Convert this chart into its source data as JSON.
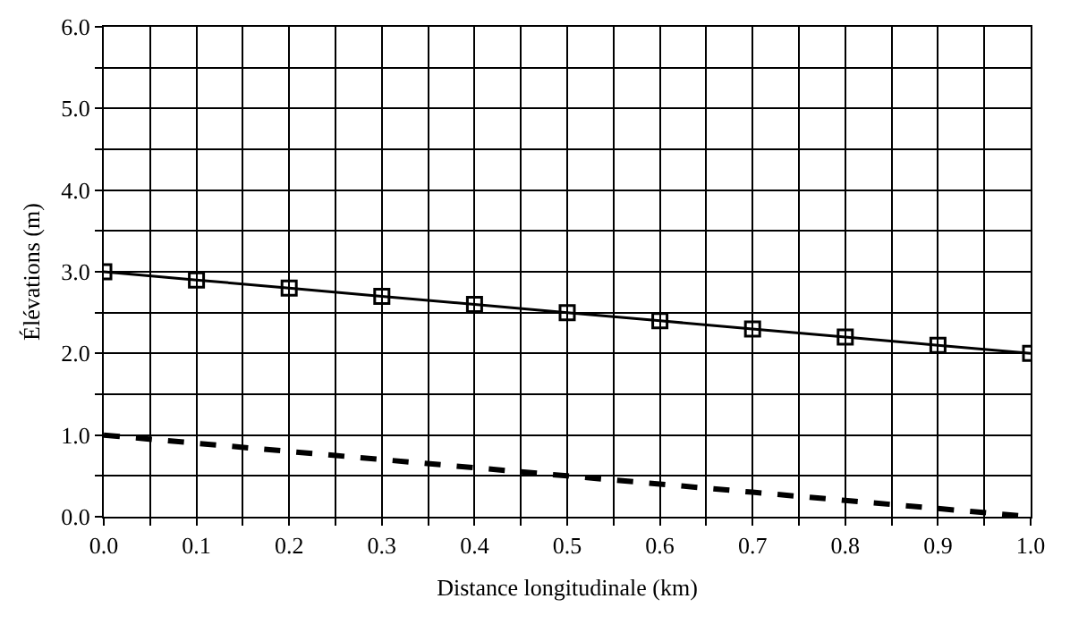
{
  "chart_data": {
    "type": "line",
    "xlabel": "Distance longitudinale (km)",
    "ylabel": "Élévations (m)",
    "x": [
      0,
      0.1,
      0.2,
      0.3,
      0.4,
      0.5,
      0.6,
      0.7,
      0.8,
      0.9,
      1.0
    ],
    "series": [
      {
        "color": "#000000",
        "marker": "square",
        "line_style": "solid",
        "values": [
          3.0,
          2.9,
          2.8,
          2.7,
          2.6,
          2.5,
          2.4,
          2.3,
          2.2,
          2.1,
          2.0
        ]
      },
      {
        "color": "#000000",
        "marker": "none",
        "line_style": "dashed",
        "values": [
          1.0,
          0.9,
          0.8,
          0.7,
          0.6,
          0.5,
          0.4,
          0.3,
          0.2,
          0.1,
          0.0
        ]
      }
    ],
    "xlim": [
      0,
      1
    ],
    "ylim": [
      0,
      6
    ],
    "xticks": [
      {
        "value": 0,
        "label": "0.0"
      },
      {
        "value": 0.05,
        "label": null
      },
      {
        "value": 0.1,
        "label": "0.1"
      },
      {
        "value": 0.15,
        "label": null
      },
      {
        "value": 0.2,
        "label": "0.2"
      },
      {
        "value": 0.25,
        "label": null
      },
      {
        "value": 0.3,
        "label": "0.3"
      },
      {
        "value": 0.35,
        "label": null
      },
      {
        "value": 0.4,
        "label": "0.4"
      },
      {
        "value": 0.45,
        "label": null
      },
      {
        "value": 0.5,
        "label": "0.5"
      },
      {
        "value": 0.55,
        "label": null
      },
      {
        "value": 0.6,
        "label": "0.6"
      },
      {
        "value": 0.65,
        "label": null
      },
      {
        "value": 0.7,
        "label": "0.7"
      },
      {
        "value": 0.75,
        "label": null
      },
      {
        "value": 0.8,
        "label": "0.8"
      },
      {
        "value": 0.85,
        "label": null
      },
      {
        "value": 0.9,
        "label": "0.9"
      },
      {
        "value": 0.95,
        "label": null
      },
      {
        "value": 1,
        "label": "1.0"
      }
    ],
    "yticks": [
      {
        "value": 0,
        "label": "0.0"
      },
      {
        "value": 0.5,
        "label": null
      },
      {
        "value": 1,
        "label": "1.0"
      },
      {
        "value": 1.5,
        "label": null
      },
      {
        "value": 2,
        "label": "2.0"
      },
      {
        "value": 2.5,
        "label": null
      },
      {
        "value": 3,
        "label": "3.0"
      },
      {
        "value": 3.5,
        "label": null
      },
      {
        "value": 4,
        "label": "4.0"
      },
      {
        "value": 4.5,
        "label": null
      },
      {
        "value": 5,
        "label": "5.0"
      },
      {
        "value": 5.5,
        "label": null
      },
      {
        "value": 6,
        "label": "6.0"
      }
    ],
    "grid": true
  }
}
